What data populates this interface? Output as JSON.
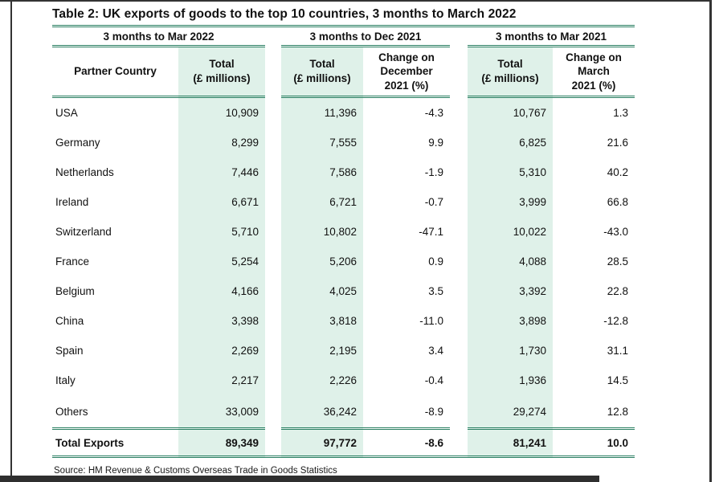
{
  "page": {
    "title": "Table 2: UK exports of goods to the top 10 countries, 3 months to March 2022",
    "source": "Source: HM Revenue & Customs Overseas Trade in Goods Statistics"
  },
  "colors": {
    "rule_green": "#2a7f62",
    "mint_shade": "#dff1e9",
    "frame_dark": "#333333"
  },
  "chart_data": {
    "type": "table",
    "title": "Table 2: UK exports of goods to the top 10 countries, 3 months to March 2022",
    "column_groups": [
      "3 months to Mar 2022",
      "3 months to Dec 2021",
      "3 months to Mar 2021"
    ],
    "headers": {
      "partner": "Partner Country",
      "total_mar2022": "Total\n(£ millions)",
      "total_dec2021": "Total\n(£ millions)",
      "change_dec2021": "Change on\nDecember\n2021 (%)",
      "total_mar2021": "Total\n(£ millions)",
      "change_mar2021": "Change on\nMarch\n2021 (%)"
    },
    "rows": [
      [
        "USA",
        "10,909",
        "11,396",
        "-4.3",
        "10,767",
        "1.3"
      ],
      [
        "Germany",
        "8,299",
        "7,555",
        "9.9",
        "6,825",
        "21.6"
      ],
      [
        "Netherlands",
        "7,446",
        "7,586",
        "-1.9",
        "5,310",
        "40.2"
      ],
      [
        "Ireland",
        "6,671",
        "6,721",
        "-0.7",
        "3,999",
        "66.8"
      ],
      [
        "Switzerland",
        "5,710",
        "10,802",
        "-47.1",
        "10,022",
        "-43.0"
      ],
      [
        "France",
        "5,254",
        "5,206",
        "0.9",
        "4,088",
        "28.5"
      ],
      [
        "Belgium",
        "4,166",
        "4,025",
        "3.5",
        "3,392",
        "22.8"
      ],
      [
        "China",
        "3,398",
        "3,818",
        "-11.0",
        "3,898",
        "-12.8"
      ],
      [
        "Spain",
        "2,269",
        "2,195",
        "3.4",
        "1,730",
        "31.1"
      ],
      [
        "Italy",
        "2,217",
        "2,226",
        "-0.4",
        "1,936",
        "14.5"
      ],
      [
        "Others",
        "33,009",
        "36,242",
        "-8.9",
        "29,274",
        "12.8"
      ]
    ],
    "total_row": [
      "Total Exports",
      "89,349",
      "97,772",
      "-8.6",
      "81,241",
      "10.0"
    ],
    "source": "Source: HM Revenue & Customs Overseas Trade in Goods Statistics",
    "layout": {
      "grid": "off",
      "shaded_columns": [
        "Total (£ millions)"
      ],
      "units": "£ millions / percent"
    }
  }
}
